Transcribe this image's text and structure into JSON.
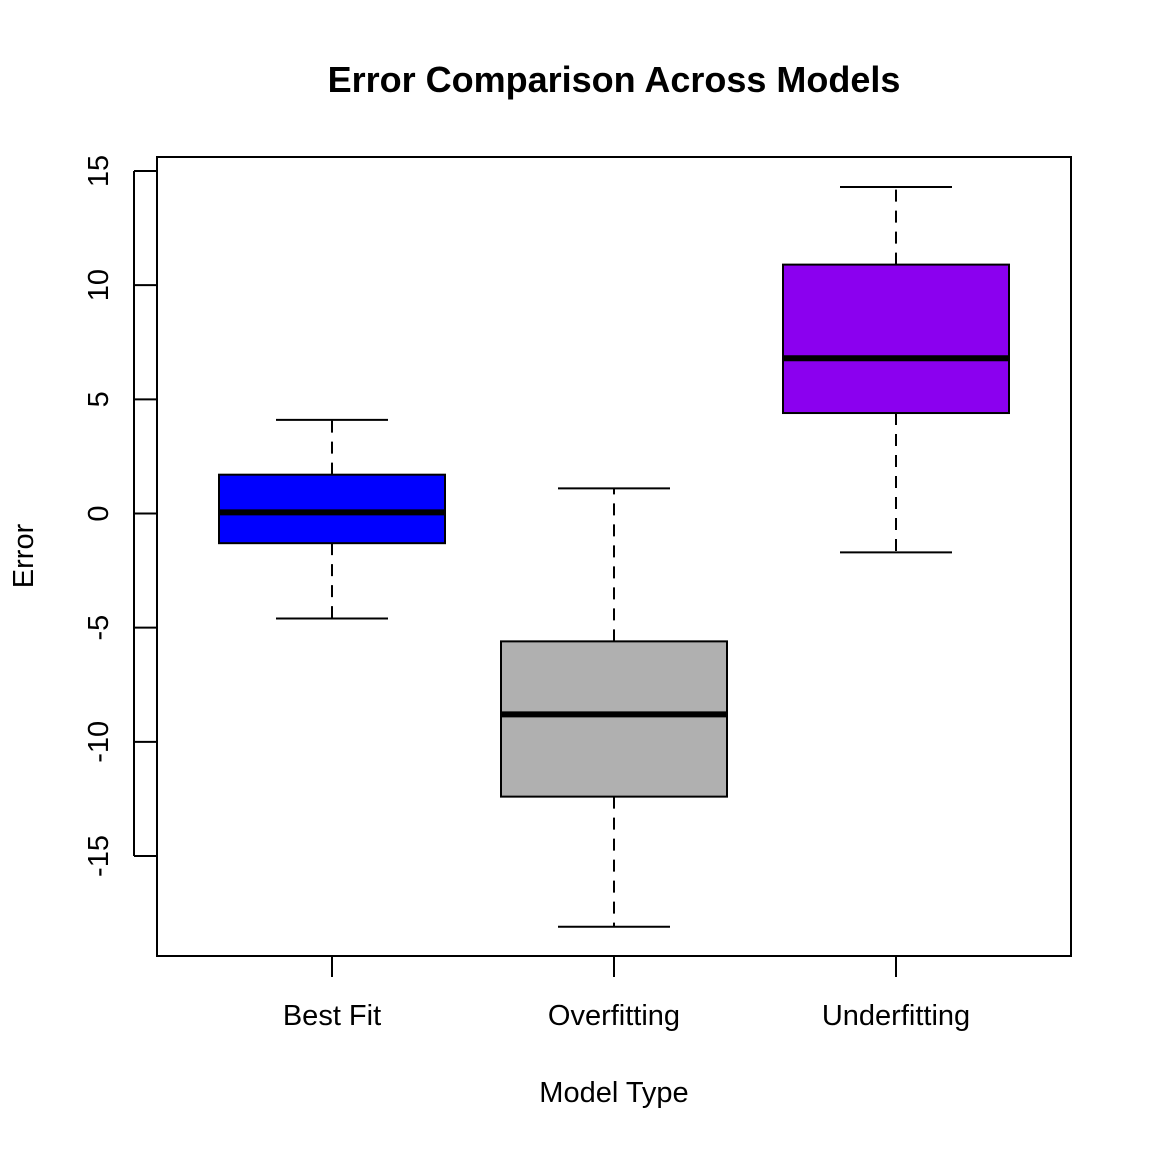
{
  "chart_data": {
    "type": "box",
    "title": "Error Comparison Across Models",
    "xlabel": "Model Type",
    "ylabel": "Error",
    "categories": [
      "Best Fit",
      "Overfitting",
      "Underfitting"
    ],
    "ylim": [
      -19.0,
      16.0
    ],
    "yticks": [
      -15,
      -10,
      -5,
      0,
      5,
      10,
      15
    ],
    "ytick_labels": [
      "-15",
      "-10",
      "-5",
      "0",
      "5",
      "10",
      "15"
    ],
    "grid": false,
    "legend": "none",
    "boxes": [
      {
        "category": "Best Fit",
        "color": "#0000ff",
        "whisker_low": -4.6,
        "q1": -1.3,
        "median": 0.05,
        "q3": 1.7,
        "whisker_high": 4.1
      },
      {
        "category": "Overfitting",
        "color": "#b0b0b0",
        "whisker_low": -18.1,
        "q1": -12.4,
        "median": -8.8,
        "q3": -5.6,
        "whisker_high": 1.1
      },
      {
        "category": "Underfitting",
        "color": "#8b00ef",
        "whisker_low": -1.7,
        "q1": 4.4,
        "median": 6.8,
        "q3": 10.9,
        "whisker_high": 14.3
      }
    ]
  }
}
